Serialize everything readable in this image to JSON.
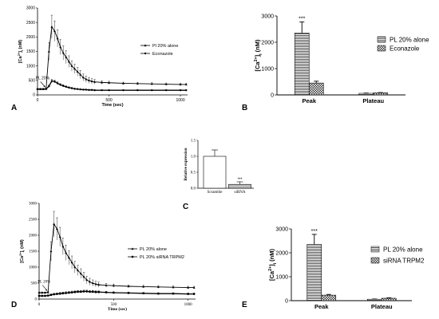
{
  "chart_data": [
    {
      "panel": "A",
      "type": "line",
      "xlabel": "Time (sec)",
      "ylabel": "[Ca2+]i (nM)",
      "ylabel_parts": [
        "[Ca",
        "2+",
        "]",
        "i",
        " (nM)"
      ],
      "xlim": [
        0,
        1050
      ],
      "ylim": [
        0,
        3000
      ],
      "xticks": [
        0,
        500,
        1000
      ],
      "yticks": [
        0,
        500,
        1000,
        1500,
        2000,
        2500,
        3000
      ],
      "arrow_label": "PL 20%",
      "arrow_x": 60,
      "series": [
        {
          "name": "Pl 20% alone",
          "marker": "triangle",
          "x": [
            0,
            20,
            40,
            60,
            80,
            100,
            120,
            140,
            160,
            180,
            200,
            220,
            240,
            260,
            280,
            300,
            320,
            340,
            360,
            380,
            400,
            450,
            500,
            600,
            700,
            800,
            900,
            1000,
            1040
          ],
          "y": [
            200,
            200,
            200,
            210,
            1500,
            2350,
            2200,
            1950,
            1650,
            1450,
            1300,
            1150,
            1000,
            900,
            800,
            700,
            600,
            540,
            500,
            470,
            450,
            430,
            420,
            400,
            390,
            380,
            370,
            360,
            360
          ],
          "err": [
            20,
            20,
            20,
            30,
            300,
            400,
            350,
            300,
            260,
            240,
            220,
            200,
            180,
            160,
            150,
            140,
            120,
            110,
            100,
            90,
            80,
            60,
            50,
            40,
            40,
            40,
            40,
            40,
            40
          ]
        },
        {
          "name": "Econazole",
          "marker": "circle",
          "x": [
            0,
            20,
            40,
            60,
            80,
            100,
            120,
            140,
            160,
            180,
            200,
            220,
            240,
            260,
            280,
            300,
            320,
            340,
            360,
            380,
            400,
            450,
            500,
            600,
            700,
            800,
            900,
            1000,
            1040
          ],
          "y": [
            200,
            200,
            200,
            200,
            300,
            480,
            460,
            400,
            350,
            310,
            280,
            250,
            230,
            210,
            200,
            190,
            180,
            180,
            170,
            170,
            160,
            160,
            160,
            160,
            160,
            160,
            160,
            160,
            160
          ],
          "err": [
            20,
            20,
            20,
            20,
            40,
            60,
            50,
            50,
            40,
            40,
            30,
            30,
            30,
            20,
            20,
            20,
            20,
            20,
            20,
            20,
            20,
            20,
            20,
            20,
            20,
            20,
            20,
            20,
            20
          ]
        }
      ]
    },
    {
      "panel": "B",
      "type": "bar",
      "ylabel": "[Ca2+]i (nM)",
      "ylabel_parts": [
        "[Ca",
        "2+",
        "]",
        "i",
        " (nM)"
      ],
      "categories": [
        "Peak",
        "Plateau"
      ],
      "ylim": [
        0,
        3000
      ],
      "yticks": [
        0,
        1000,
        2000,
        3000
      ],
      "series": [
        {
          "name": "PL 20% alone",
          "pattern": "stripes",
          "values": [
            2350,
            60
          ],
          "err": [
            420,
            10
          ]
        },
        {
          "name": "Econazole",
          "pattern": "checker",
          "values": [
            450,
            80
          ],
          "err": [
            70,
            10
          ]
        }
      ],
      "annotation": "***"
    },
    {
      "panel": "C",
      "type": "bar",
      "ylabel": "Relative expression",
      "categories": [
        "Scramble",
        "siRNA"
      ],
      "ylim": [
        0,
        1.5
      ],
      "yticks": [
        "0.0",
        "0.5",
        "1.0",
        "1.5"
      ],
      "values": [
        1.0,
        0.12
      ],
      "err": [
        0.2,
        0.08
      ],
      "annotation": "***"
    },
    {
      "panel": "D",
      "type": "line",
      "xlabel": "Time (sec)",
      "ylabel": "[Ca2+]i (nM)",
      "ylabel_parts": [
        "[Ca",
        "2+",
        "]",
        "i",
        " (nM)"
      ],
      "xlim": [
        0,
        1050
      ],
      "ylim": [
        0,
        3000
      ],
      "xticks": [
        0,
        500,
        1000
      ],
      "yticks": [
        0,
        500,
        1000,
        1500,
        2000,
        2500,
        3000
      ],
      "arrow_label": "PL 20%",
      "arrow_x": 60,
      "series": [
        {
          "name": "PL 20% alone",
          "marker": "triangle",
          "x": [
            0,
            20,
            40,
            60,
            80,
            100,
            120,
            140,
            160,
            180,
            200,
            220,
            240,
            260,
            280,
            300,
            320,
            340,
            360,
            380,
            400,
            450,
            500,
            600,
            700,
            800,
            900,
            1000,
            1040
          ],
          "y": [
            200,
            200,
            200,
            210,
            1500,
            2350,
            2200,
            1950,
            1650,
            1450,
            1300,
            1150,
            1000,
            900,
            800,
            700,
            600,
            540,
            500,
            470,
            450,
            430,
            420,
            400,
            390,
            380,
            370,
            360,
            360
          ],
          "err": [
            20,
            20,
            20,
            30,
            300,
            400,
            350,
            300,
            260,
            240,
            220,
            200,
            180,
            160,
            150,
            140,
            120,
            110,
            100,
            90,
            80,
            60,
            50,
            40,
            40,
            40,
            40,
            40,
            40
          ]
        },
        {
          "name": "PL 20% siRNA TRPM2",
          "marker": "square",
          "x": [
            0,
            20,
            40,
            60,
            80,
            100,
            120,
            140,
            160,
            180,
            200,
            220,
            240,
            260,
            280,
            300,
            320,
            340,
            360,
            380,
            400,
            450,
            500,
            600,
            700,
            800,
            900,
            1000,
            1040
          ],
          "y": [
            100,
            100,
            100,
            110,
            130,
            150,
            160,
            170,
            180,
            190,
            200,
            210,
            220,
            230,
            230,
            240,
            240,
            230,
            230,
            220,
            220,
            210,
            200,
            190,
            180,
            170,
            170,
            160,
            160
          ],
          "err": [
            20,
            20,
            20,
            20,
            30,
            30,
            30,
            40,
            40,
            40,
            40,
            40,
            40,
            40,
            40,
            40,
            40,
            40,
            40,
            40,
            40,
            30,
            30,
            30,
            30,
            30,
            30,
            30,
            30
          ]
        }
      ]
    },
    {
      "panel": "E",
      "type": "bar",
      "ylabel": "[Ca2+]i (nM)",
      "ylabel_parts": [
        "[Ca",
        "2+",
        "]",
        "i",
        " (nM)"
      ],
      "categories": [
        "Peak",
        "Plateau"
      ],
      "ylim": [
        0,
        3000
      ],
      "yticks": [
        0,
        1000,
        2000,
        3000
      ],
      "series": [
        {
          "name": "PL 20% alone",
          "pattern": "stripes",
          "values": [
            2350,
            60
          ],
          "err": [
            420,
            10
          ]
        },
        {
          "name": "siRNA TRPM2",
          "pattern": "checker",
          "values": [
            230,
            100
          ],
          "err": [
            30,
            20
          ]
        }
      ],
      "annotation": "***"
    }
  ],
  "panel_labels": [
    "A",
    "B",
    "C",
    "D",
    "E"
  ]
}
